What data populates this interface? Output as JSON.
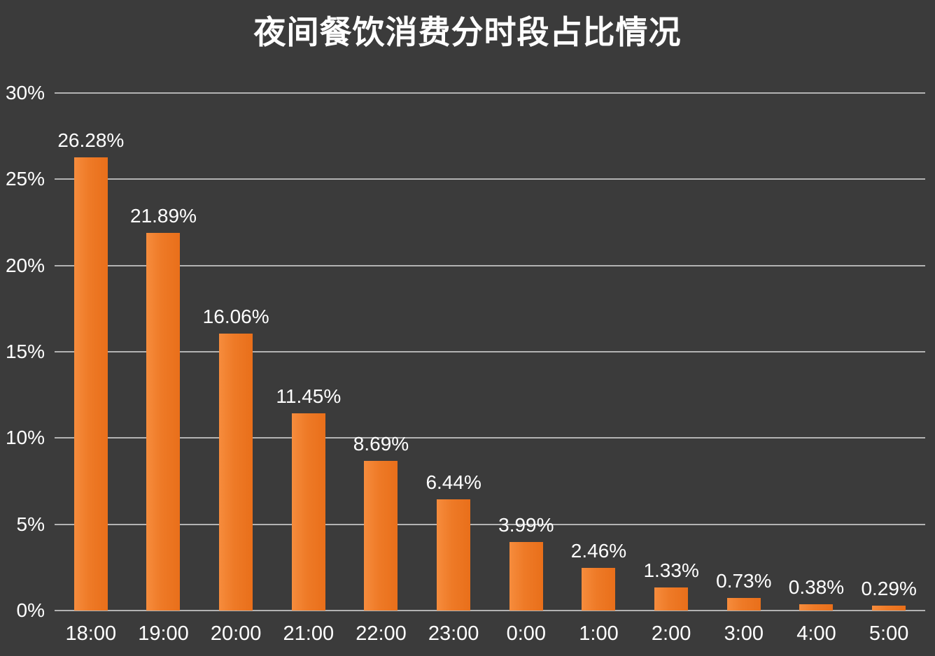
{
  "title": "夜间餐饮消费分时段占比情况",
  "chart_data": {
    "type": "bar",
    "title": "夜间餐饮消费分时段占比情况",
    "xlabel": "",
    "ylabel": "",
    "categories": [
      "18:00",
      "19:00",
      "20:00",
      "21:00",
      "22:00",
      "23:00",
      "0:00",
      "1:00",
      "2:00",
      "3:00",
      "4:00",
      "5:00"
    ],
    "values": [
      26.28,
      21.89,
      16.06,
      11.45,
      8.69,
      6.44,
      3.99,
      2.46,
      1.33,
      0.73,
      0.38,
      0.29
    ],
    "value_labels": [
      "26.28%",
      "21.89%",
      "16.06%",
      "11.45%",
      "8.69%",
      "6.44%",
      "3.99%",
      "2.46%",
      "1.33%",
      "0.73%",
      "0.38%",
      "0.29%"
    ],
    "ylim": [
      0,
      30
    ],
    "ytick_values": [
      0,
      5,
      10,
      15,
      20,
      25,
      30
    ],
    "ytick_labels": [
      "0%",
      "5%",
      "10%",
      "15%",
      "20%",
      "25%",
      "30%"
    ],
    "grid": true,
    "legend_position": "none",
    "colors": {
      "background": "#3b3b3b",
      "bar": "#ee7a27",
      "text": "#ffffff",
      "gridline": "#c9c9c9"
    }
  }
}
